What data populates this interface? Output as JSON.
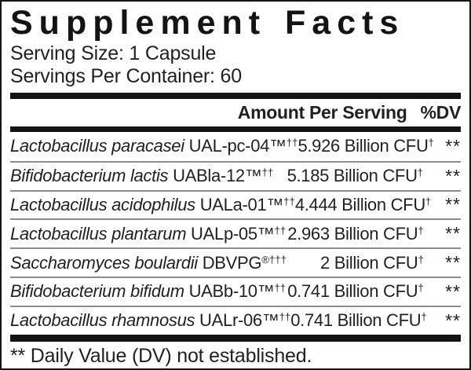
{
  "colors": {
    "text": "#231f20",
    "bar": "#161314",
    "rule": "#8c8c8c",
    "border": "#161314"
  },
  "title": "Supplement Facts",
  "serving": {
    "size_line": "Serving Size: 1 Capsule",
    "count_line": "Servings Per Container: 60"
  },
  "table": {
    "header": {
      "amount": "Amount Per Serving",
      "dv": "%DV"
    },
    "rows": [
      {
        "species": "Lactobacillus paracasei",
        "strain": "UAL-pc-04™",
        "strain_sup": "††",
        "amount": "5.926 Billion CFU",
        "amount_sup": "†",
        "dv": "**"
      },
      {
        "species": "Bifidobacterium lactis",
        "strain": "UABla-12™",
        "strain_sup": "††",
        "amount": "5.185 Billion CFU",
        "amount_sup": "†",
        "dv": "**"
      },
      {
        "species": "Lactobacillus acidophilus",
        "strain": "UALa-01™",
        "strain_sup": "††",
        "amount": "4.444 Billion CFU",
        "amount_sup": "†",
        "dv": "**"
      },
      {
        "species": "Lactobacillus plantarum",
        "strain": "UALp-05™",
        "strain_sup": "††",
        "amount": "2.963 Billion CFU",
        "amount_sup": "†",
        "dv": "**"
      },
      {
        "species": "Saccharomyces boulardii",
        "strain": "DBVPG",
        "strain_sup": "®†††",
        "amount": "2 Billion CFU",
        "amount_sup": "†",
        "dv": "**"
      },
      {
        "species": "Bifidobacterium bifidum",
        "strain": "UABb-10™",
        "strain_sup": "††",
        "amount": "0.741 Billion CFU",
        "amount_sup": "†",
        "dv": "**"
      },
      {
        "species": "Lactobacillus rhamnosus",
        "strain": "UALr-06™",
        "strain_sup": "††",
        "amount": "0.741 Billion CFU",
        "amount_sup": "†",
        "dv": "**"
      }
    ]
  },
  "footnote": "** Daily Value (DV) not established."
}
